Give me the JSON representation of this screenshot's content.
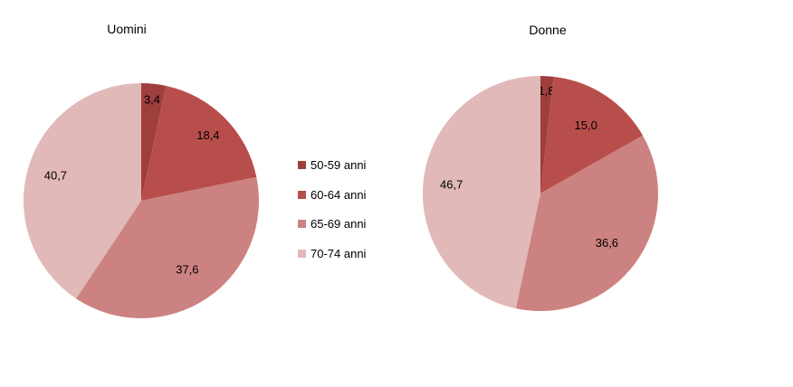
{
  "chart_data": [
    {
      "type": "pie",
      "title": "Uomini",
      "categories": [
        "50-59 anni",
        "60-64 anni",
        "65-69 anni",
        "70-74 anni"
      ],
      "values": [
        3.4,
        18.4,
        37.6,
        40.7
      ],
      "value_labels": [
        "3,4",
        "18,4",
        "37,6",
        "40,7"
      ],
      "colors": [
        "#9e3f3e",
        "#b84e4b",
        "#cc8280",
        "#e0b9b8"
      ],
      "legend": "right"
    },
    {
      "type": "pie",
      "title": "Donne",
      "categories": [
        "50-59 anni",
        "60-64 anni",
        "65-69 anni",
        "70-74 anni"
      ],
      "values": [
        1.8,
        15.0,
        36.6,
        46.7
      ],
      "value_labels": [
        "1,8",
        "15,0",
        "36,6",
        "46,7"
      ],
      "colors": [
        "#9e3f3e",
        "#b84e4b",
        "#cc8280",
        "#e0b9b8"
      ]
    }
  ],
  "legend": {
    "items": [
      {
        "label": "50-59 anni",
        "color": "#9e3f3e"
      },
      {
        "label": "60-64 anni",
        "color": "#b84e4b"
      },
      {
        "label": "65-69 anni",
        "color": "#cc8280"
      },
      {
        "label": "70-74 anni",
        "color": "#e0b9b8"
      }
    ]
  }
}
